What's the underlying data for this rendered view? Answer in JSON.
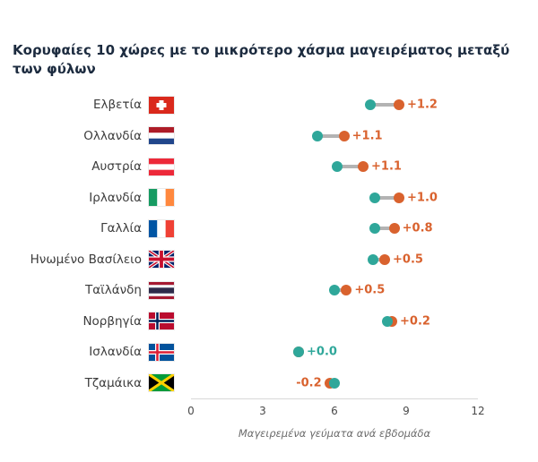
{
  "title": "Κορυφαίες 10 χώρες με το μικρότερο χάσμα μαγειρέματος μεταξύ των φύλων",
  "chart_data": {
    "type": "dumbbell",
    "title": "Κορυφαίες 10 χώρες με το μικρότερο χάσμα μαγειρέματος μεταξύ των φύλων",
    "xlabel": "Μαγειρεμένα γεύματα ανά εβδομάδα",
    "xlim": [
      0,
      12
    ],
    "xticks": [
      0,
      3,
      6,
      9,
      12
    ],
    "grid": false,
    "colors": {
      "teal": "#2fa79a",
      "orange": "#d9622e",
      "connector": "#b3b3b3"
    },
    "rows": [
      {
        "country": "Ελβετία",
        "flag": "switzerland",
        "teal": 7.8,
        "orange": 9.0,
        "gap_label": "+1.2",
        "gap_label_side": "right",
        "gap_label_color": "orange"
      },
      {
        "country": "Ολλανδία",
        "flag": "netherlands",
        "teal": 5.6,
        "orange": 6.7,
        "gap_label": "+1.1",
        "gap_label_side": "right",
        "gap_label_color": "orange"
      },
      {
        "country": "Αυστρία",
        "flag": "austria",
        "teal": 6.4,
        "orange": 7.5,
        "gap_label": "+1.1",
        "gap_label_side": "right",
        "gap_label_color": "orange"
      },
      {
        "country": "Ιρλανδία",
        "flag": "ireland",
        "teal": 8.0,
        "orange": 9.0,
        "gap_label": "+1.0",
        "gap_label_side": "right",
        "gap_label_color": "orange"
      },
      {
        "country": "Γαλλία",
        "flag": "france",
        "teal": 8.0,
        "orange": 8.8,
        "gap_label": "+0.8",
        "gap_label_side": "right",
        "gap_label_color": "orange"
      },
      {
        "country": "Ηνωμένο Βασίλειο",
        "flag": "united-kingdom",
        "teal": 7.9,
        "orange": 8.4,
        "gap_label": "+0.5",
        "gap_label_side": "right",
        "gap_label_color": "orange"
      },
      {
        "country": "Ταϊλάνδη",
        "flag": "thailand",
        "teal": 6.3,
        "orange": 6.8,
        "gap_label": "+0.5",
        "gap_label_side": "right",
        "gap_label_color": "orange"
      },
      {
        "country": "Νορβηγία",
        "flag": "norway",
        "teal": 8.5,
        "orange": 8.7,
        "gap_label": "+0.2",
        "gap_label_side": "right",
        "gap_label_color": "orange"
      },
      {
        "country": "Ισλανδία",
        "flag": "iceland",
        "teal": 4.8,
        "orange": 4.8,
        "gap_label": "+0.0",
        "gap_label_side": "right",
        "gap_label_color": "teal"
      },
      {
        "country": "Τζαμάικα",
        "flag": "jamaica",
        "teal": 6.3,
        "orange": 6.1,
        "gap_label": "-0.2",
        "gap_label_side": "left",
        "gap_label_color": "orange"
      }
    ]
  }
}
